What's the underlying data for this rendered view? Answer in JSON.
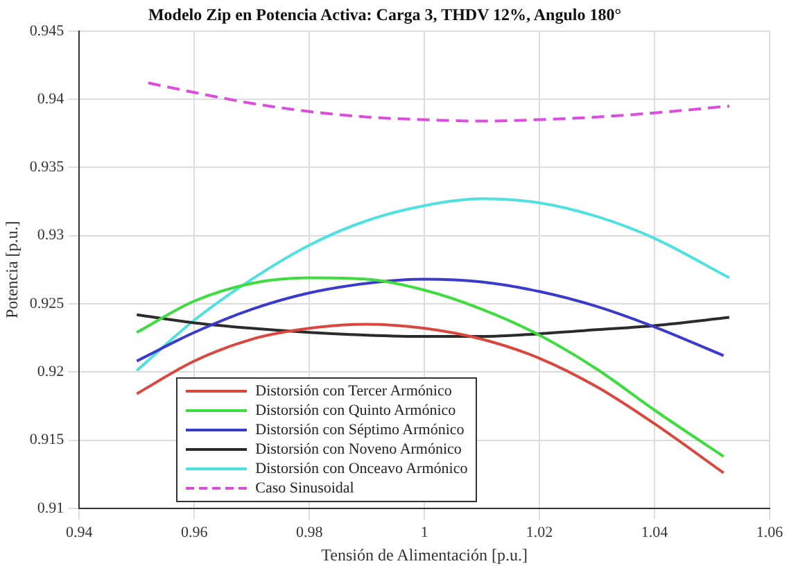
{
  "chart_data": {
    "type": "line",
    "title": "Modelo Zip en Potencia Activa: Carga 3, THDV 12%, Angulo 180°",
    "xlabel": "Tensión de Alimentación [p.u.]",
    "ylabel": "Potencia [p.u.]",
    "xlim": [
      0.94,
      1.06
    ],
    "xticks": [
      0.94,
      0.96,
      0.98,
      1,
      1.02,
      1.04,
      1.06
    ],
    "ylim": [
      0.91,
      0.945
    ],
    "yticks": [
      0.91,
      0.915,
      0.92,
      0.925,
      0.93,
      0.935,
      0.94,
      0.945
    ],
    "grid": true,
    "legend": "bottom left",
    "marker": "none",
    "series": [
      {
        "name": "Distorsión con Tercer Armónico",
        "color": "#d9473f",
        "x": [
          0.95,
          0.96,
          0.97,
          0.98,
          0.99,
          1.0,
          1.01,
          1.02,
          1.03,
          1.04,
          1.052
        ],
        "values": [
          0.9184,
          0.9208,
          0.9224,
          0.9232,
          0.9235,
          0.9232,
          0.9224,
          0.921,
          0.9189,
          0.9162,
          0.9126
        ]
      },
      {
        "name": "Distorsión con Quinto Armónico",
        "color": "#3fdc3f",
        "x": [
          0.95,
          0.96,
          0.97,
          0.98,
          0.99,
          1.0,
          1.01,
          1.02,
          1.03,
          1.04,
          1.052
        ],
        "values": [
          0.9229,
          0.9252,
          0.9265,
          0.9269,
          0.9268,
          0.926,
          0.9246,
          0.9227,
          0.9202,
          0.9172,
          0.9138
        ]
      },
      {
        "name": "Distorsión con Séptimo Armónico",
        "color": "#3a3acb",
        "x": [
          0.95,
          0.96,
          0.97,
          0.98,
          0.99,
          1.0,
          1.01,
          1.02,
          1.03,
          1.04,
          1.052
        ],
        "values": [
          0.9208,
          0.9229,
          0.9246,
          0.9258,
          0.9265,
          0.9268,
          0.9266,
          0.9259,
          0.9248,
          0.9233,
          0.9212
        ]
      },
      {
        "name": "Distorsión con Noveno Armónico",
        "color": "#2b2b2b",
        "x": [
          0.95,
          0.96,
          0.97,
          0.98,
          0.99,
          1.0,
          1.01,
          1.02,
          1.03,
          1.04,
          1.053
        ],
        "values": [
          0.9242,
          0.9236,
          0.9232,
          0.9229,
          0.9227,
          0.9226,
          0.9226,
          0.9228,
          0.9231,
          0.9234,
          0.924
        ]
      },
      {
        "name": "Distorsión con Onceavo Armónico",
        "color": "#4fe0e0",
        "x": [
          0.95,
          0.96,
          0.97,
          0.98,
          0.99,
          1.0,
          1.01,
          1.02,
          1.03,
          1.04,
          1.053
        ],
        "values": [
          0.9201,
          0.9238,
          0.9268,
          0.9293,
          0.9311,
          0.9322,
          0.9327,
          0.9324,
          0.9314,
          0.9298,
          0.9269
        ]
      },
      {
        "name": "Caso Sinusoidal",
        "color": "#dd4ddd",
        "line_style": "dashed",
        "x": [
          0.952,
          0.96,
          0.97,
          0.98,
          0.99,
          1.0,
          1.01,
          1.02,
          1.03,
          1.04,
          1.053
        ],
        "values": [
          0.9412,
          0.9405,
          0.9397,
          0.9391,
          0.9387,
          0.9385,
          0.9384,
          0.9385,
          0.9387,
          0.939,
          0.9395
        ]
      }
    ]
  }
}
